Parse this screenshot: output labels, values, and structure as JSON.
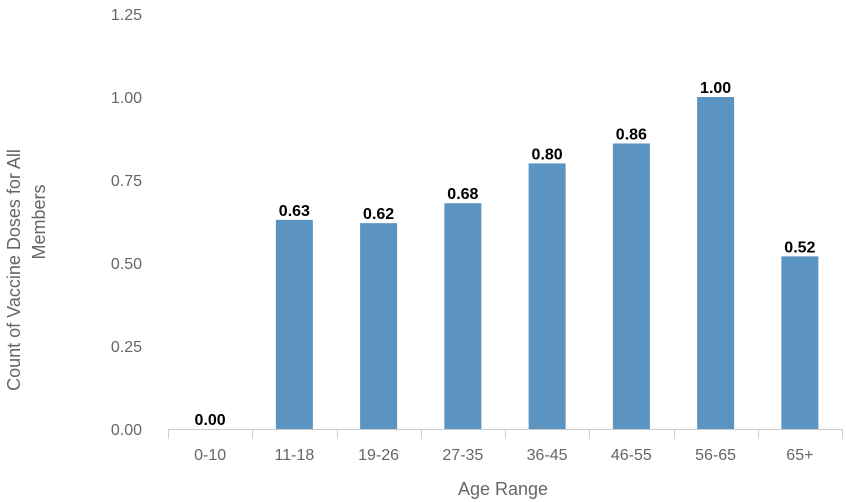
{
  "chart_data": {
    "type": "bar",
    "categories": [
      "0-10",
      "11-18",
      "19-26",
      "27-35",
      "36-45",
      "46-55",
      "56-65",
      "65+"
    ],
    "values": [
      0.0,
      0.63,
      0.62,
      0.68,
      0.8,
      0.86,
      1.0,
      0.52
    ],
    "data_labels": [
      "0.00",
      "0.63",
      "0.62",
      "0.68",
      "0.80",
      "0.86",
      "1.00",
      "0.52"
    ],
    "title": "",
    "xlabel": "Age Range",
    "ylabel": [
      "Count of Vaccine Doses for All",
      "Members"
    ],
    "ylim": [
      0,
      1.25
    ],
    "yticks": [
      "0.00",
      "0.25",
      "0.50",
      "0.75",
      "1.00",
      "1.25"
    ],
    "ytick_values": [
      0,
      0.25,
      0.5,
      0.75,
      1.0,
      1.25
    ],
    "grid": false,
    "legend": "none",
    "bar_color": "#5b93c1",
    "axis_color": "#cccccc"
  }
}
